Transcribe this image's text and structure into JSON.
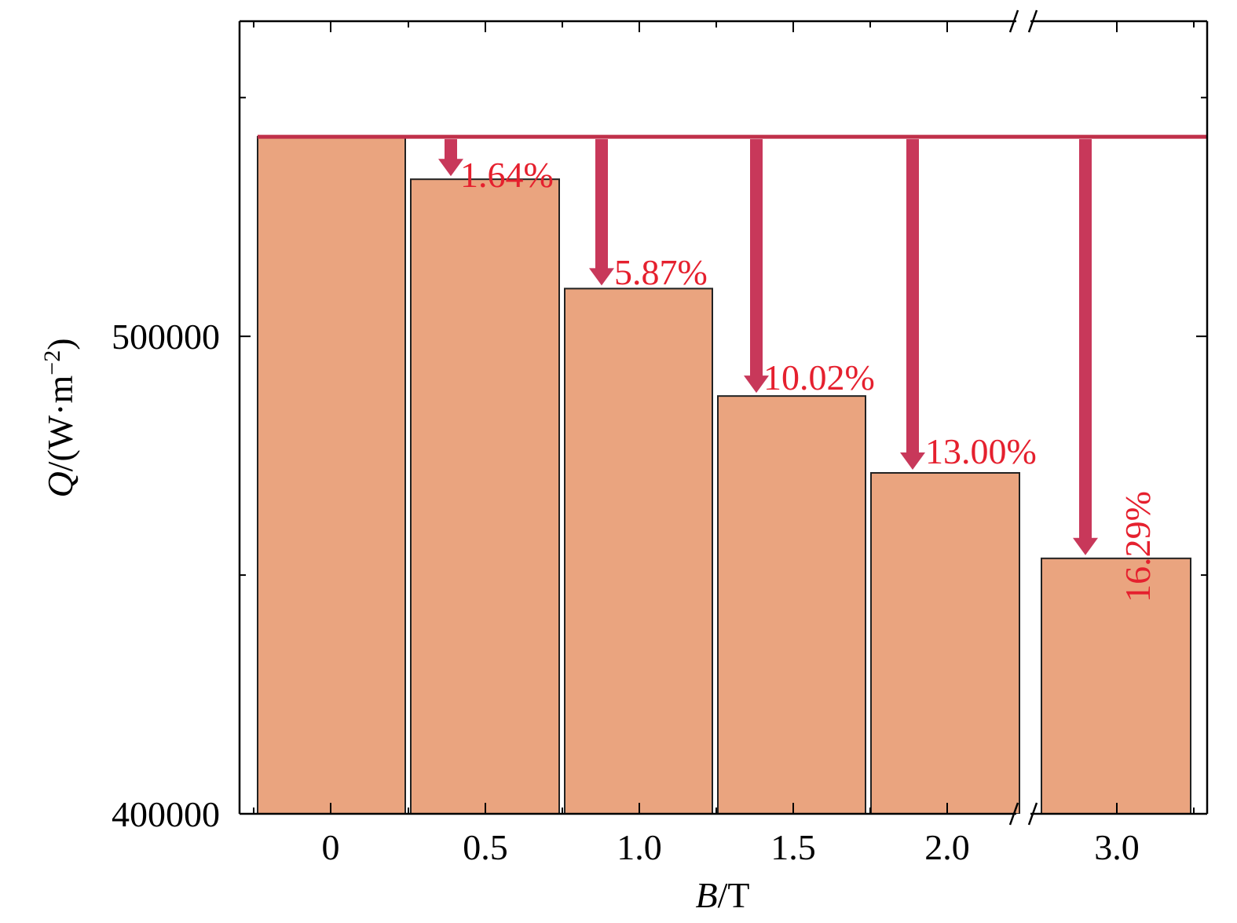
{
  "chart_data": {
    "type": "bar",
    "categories": [
      "0",
      "0.5",
      "1.0",
      "1.5",
      "2.0",
      "3.0"
    ],
    "values": [
      541800,
      532900,
      510000,
      487500,
      471400,
      453500
    ],
    "reference_value": 541800,
    "reduction_labels": [
      "",
      "1.64%",
      "5.87%",
      "10.02%",
      "13.00%",
      "16.29%"
    ],
    "xlabel": {
      "italic": "B",
      "rest": "/T"
    },
    "ylabel": {
      "italic": "Q",
      "rest": "/(W·m",
      "sup": "−2",
      "close": ")"
    },
    "ylim": [
      400000,
      566000
    ],
    "yticks": [
      400000,
      500000
    ],
    "yticks_minor": [
      450000,
      550000
    ],
    "axis_break": "between 2.0 and 3.0",
    "grid": false,
    "legend": "none",
    "colors": {
      "bar_fill": "#EAA47F",
      "bar_stroke": "#222222",
      "reference_line": "#C0304A",
      "arrow": "#C8385A",
      "annotation_text": "#E5202E"
    }
  }
}
